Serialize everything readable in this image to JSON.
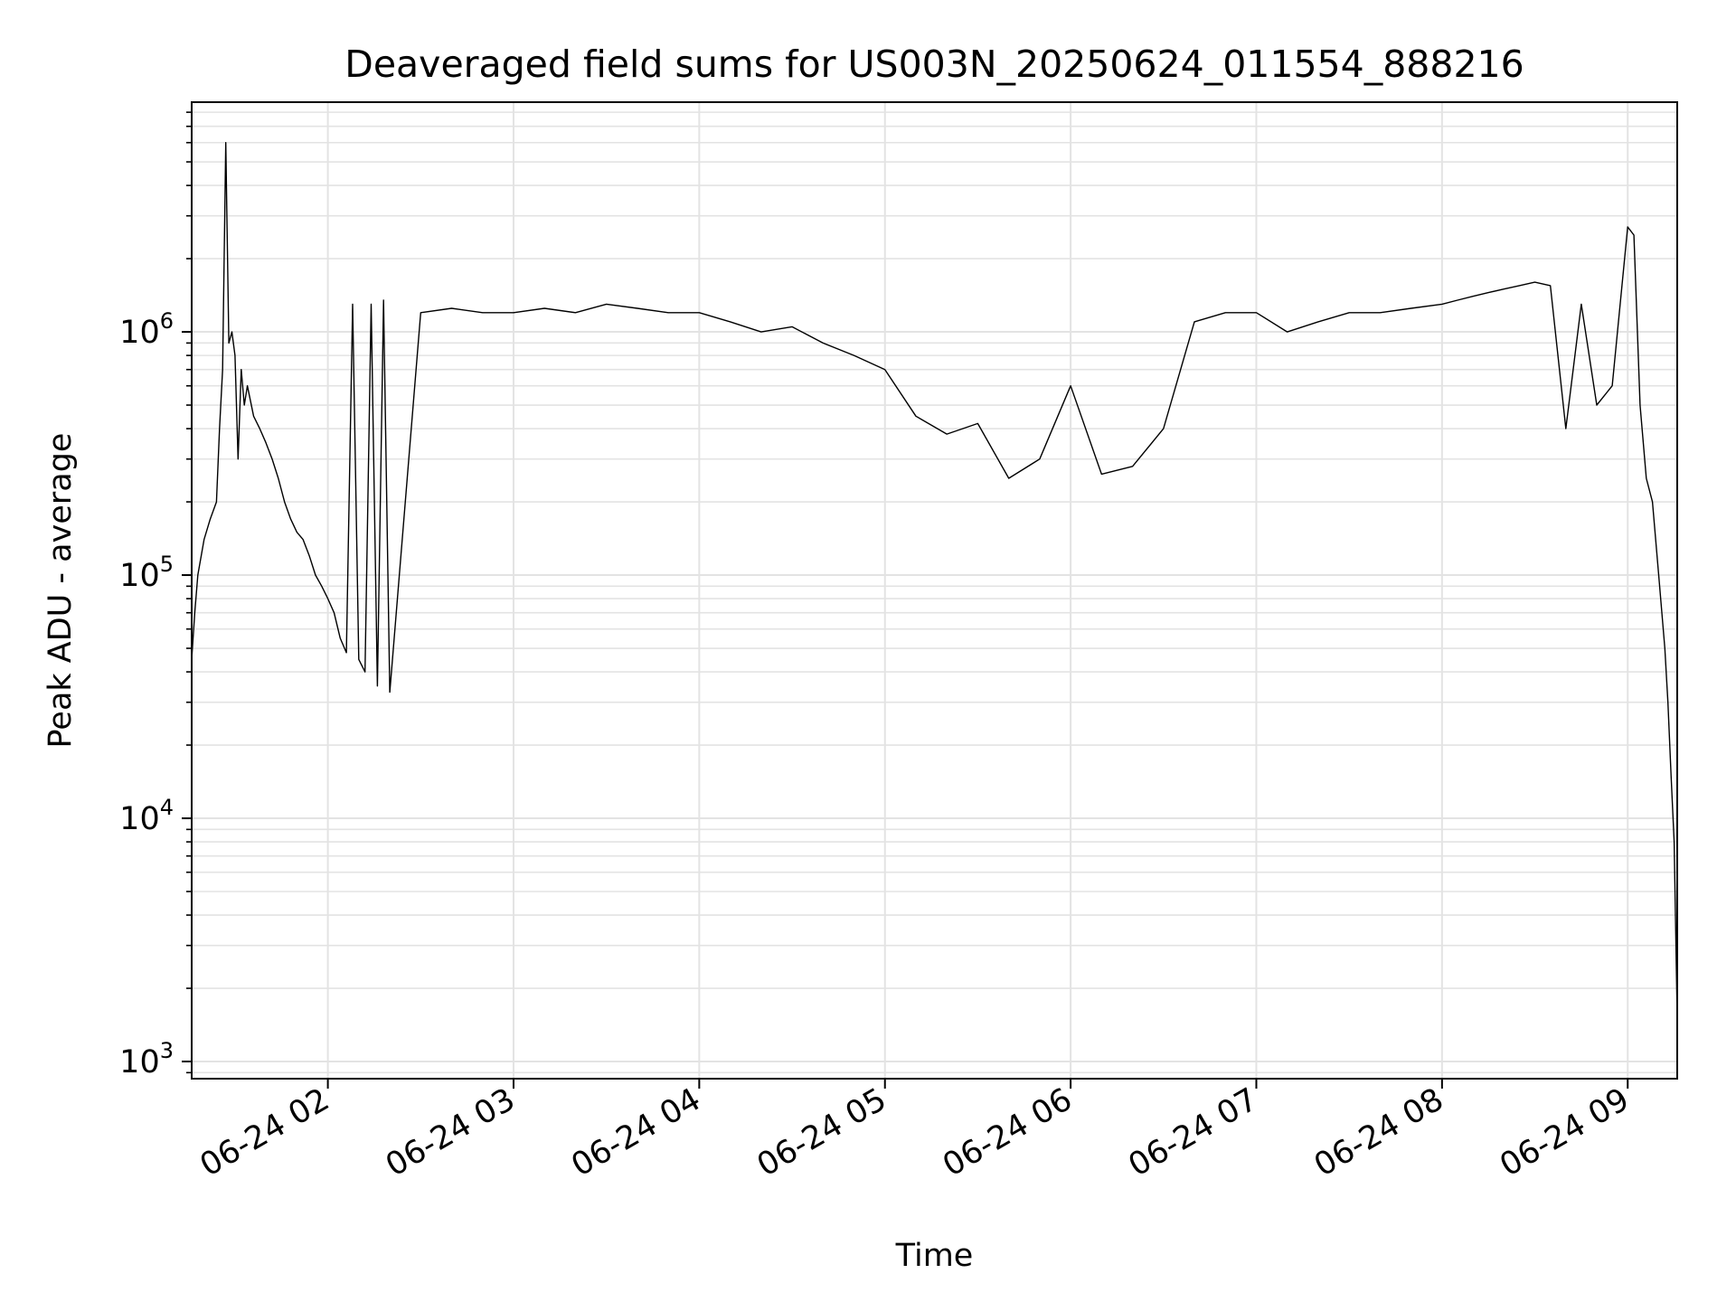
{
  "chart_data": {
    "type": "line",
    "title": "Deaveraged field sums for US003N_20250624_011554_888216",
    "xlabel": "Time",
    "ylabel": "Peak ADU - average",
    "yscale": "log",
    "grid": true,
    "xlim": [
      "2025-06-24T01:16",
      "2025-06-24T09:16"
    ],
    "ylim": [
      850,
      8800000
    ],
    "x_ticks": [
      {
        "value": "2025-06-24T02:00",
        "label": "06-24 02"
      },
      {
        "value": "2025-06-24T03:00",
        "label": "06-24 03"
      },
      {
        "value": "2025-06-24T04:00",
        "label": "06-24 04"
      },
      {
        "value": "2025-06-24T05:00",
        "label": "06-24 05"
      },
      {
        "value": "2025-06-24T06:00",
        "label": "06-24 06"
      },
      {
        "value": "2025-06-24T07:00",
        "label": "06-24 07"
      },
      {
        "value": "2025-06-24T08:00",
        "label": "06-24 08"
      },
      {
        "value": "2025-06-24T09:00",
        "label": "06-24 09"
      }
    ],
    "y_ticks": [
      {
        "value": 1000,
        "base": "10",
        "exp": "3"
      },
      {
        "value": 10000,
        "base": "10",
        "exp": "4"
      },
      {
        "value": 100000,
        "base": "10",
        "exp": "5"
      },
      {
        "value": 1000000,
        "base": "10",
        "exp": "6"
      }
    ],
    "series": [
      {
        "color": "#000000",
        "x": [
          "2025-06-24T01:16",
          "2025-06-24T01:17",
          "2025-06-24T01:18",
          "2025-06-24T01:20",
          "2025-06-24T01:22",
          "2025-06-24T01:24",
          "2025-06-24T01:25",
          "2025-06-24T01:26",
          "2025-06-24T01:27",
          "2025-06-24T01:28",
          "2025-06-24T01:29",
          "2025-06-24T01:30",
          "2025-06-24T01:31",
          "2025-06-24T01:32",
          "2025-06-24T01:33",
          "2025-06-24T01:34",
          "2025-06-24T01:36",
          "2025-06-24T01:38",
          "2025-06-24T01:40",
          "2025-06-24T01:42",
          "2025-06-24T01:44",
          "2025-06-24T01:46",
          "2025-06-24T01:48",
          "2025-06-24T01:50",
          "2025-06-24T01:52",
          "2025-06-24T01:54",
          "2025-06-24T01:56",
          "2025-06-24T01:58",
          "2025-06-24T02:00",
          "2025-06-24T02:02",
          "2025-06-24T02:04",
          "2025-06-24T02:06",
          "2025-06-24T02:08",
          "2025-06-24T02:10",
          "2025-06-24T02:12",
          "2025-06-24T02:14",
          "2025-06-24T02:16",
          "2025-06-24T02:18",
          "2025-06-24T02:20",
          "2025-06-24T02:30",
          "2025-06-24T02:40",
          "2025-06-24T02:50",
          "2025-06-24T03:00",
          "2025-06-24T03:10",
          "2025-06-24T03:20",
          "2025-06-24T03:30",
          "2025-06-24T03:40",
          "2025-06-24T03:50",
          "2025-06-24T04:00",
          "2025-06-24T04:10",
          "2025-06-24T04:20",
          "2025-06-24T04:30",
          "2025-06-24T04:40",
          "2025-06-24T04:50",
          "2025-06-24T05:00",
          "2025-06-24T05:10",
          "2025-06-24T05:20",
          "2025-06-24T05:30",
          "2025-06-24T05:40",
          "2025-06-24T05:50",
          "2025-06-24T06:00",
          "2025-06-24T06:10",
          "2025-06-24T06:20",
          "2025-06-24T06:30",
          "2025-06-24T06:40",
          "2025-06-24T06:50",
          "2025-06-24T07:00",
          "2025-06-24T07:10",
          "2025-06-24T07:20",
          "2025-06-24T07:30",
          "2025-06-24T07:40",
          "2025-06-24T07:50",
          "2025-06-24T08:00",
          "2025-06-24T08:05",
          "2025-06-24T08:10",
          "2025-06-24T08:15",
          "2025-06-24T08:20",
          "2025-06-24T08:25",
          "2025-06-24T08:30",
          "2025-06-24T08:35",
          "2025-06-24T08:40",
          "2025-06-24T08:45",
          "2025-06-24T08:50",
          "2025-06-24T08:55",
          "2025-06-24T09:00",
          "2025-06-24T09:02",
          "2025-06-24T09:04",
          "2025-06-24T09:06",
          "2025-06-24T09:08",
          "2025-06-24T09:10",
          "2025-06-24T09:12",
          "2025-06-24T09:13",
          "2025-06-24T09:14",
          "2025-06-24T09:15",
          "2025-06-24T09:16"
        ],
        "y": [
          45000,
          70000,
          100000,
          140000,
          170000,
          200000,
          400000,
          700000,
          6000000,
          900000,
          1000000,
          800000,
          300000,
          700000,
          500000,
          600000,
          450000,
          400000,
          350000,
          300000,
          250000,
          200000,
          170000,
          150000,
          140000,
          120000,
          100000,
          90000,
          80000,
          70000,
          55000,
          48000,
          1300000,
          45000,
          40000,
          1300000,
          35000,
          1350000,
          33000,
          1200000,
          1250000,
          1200000,
          1200000,
          1250000,
          1200000,
          1300000,
          1250000,
          1200000,
          1200000,
          1100000,
          1000000,
          1050000,
          900000,
          800000,
          700000,
          450000,
          380000,
          420000,
          250000,
          300000,
          600000,
          260000,
          280000,
          400000,
          1100000,
          1200000,
          1200000,
          1000000,
          1100000,
          1200000,
          1200000,
          1250000,
          1300000,
          1350000,
          1400000,
          1450000,
          1500000,
          1550000,
          1600000,
          1550000,
          400000,
          1300000,
          500000,
          600000,
          2700000,
          2500000,
          500000,
          250000,
          200000,
          100000,
          50000,
          30000,
          15000,
          8000,
          1500
        ]
      }
    ]
  }
}
